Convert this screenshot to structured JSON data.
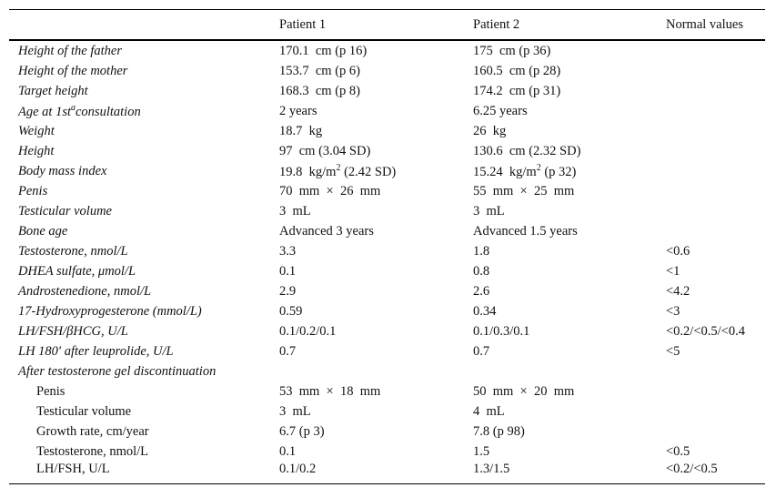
{
  "table": {
    "header": [
      "Patient 1",
      "Patient 2",
      "Normal values"
    ],
    "rows": [
      [
        "Height of the father",
        "170.1  cm (p 16)",
        "175  cm (p 36)",
        null
      ],
      [
        "Height of the mother",
        "153.7  cm (p 6)",
        "160.5  cm (p 28)",
        null
      ],
      [
        "Target height",
        "168.3  cm (p 8)",
        "174.2  cm (p 31)",
        null
      ],
      [
        {
          "text": "Age at 1st",
          "sup": "a",
          "tail": "consultation"
        },
        "2 years",
        "6.25 years",
        null
      ],
      [
        "Weight",
        "18.7  kg",
        "26  kg",
        null
      ],
      [
        "Height",
        "97  cm (3.04 SD)",
        "130.6  cm (2.32 SD)",
        null
      ],
      [
        "Body mass index",
        {
          "text": "19.8  kg/m",
          "sup": "2",
          "tail": " (2.42 SD)"
        },
        {
          "text": "15.24  kg/m",
          "sup": "2",
          "tail": " (p 32)"
        },
        null
      ],
      [
        "Penis",
        "70  mm  ×  26  mm",
        "55  mm  ×  25  mm",
        null
      ],
      [
        "Testicular volume",
        "3  mL",
        "3  mL",
        null
      ],
      [
        "Bone age",
        "Advanced 3 years",
        "Advanced 1.5 years",
        null
      ],
      [
        "Testosterone, nmol/L",
        "3.3",
        "1.8",
        "<0.6"
      ],
      [
        "DHEA sulfate, μmol/L",
        "0.1",
        "0.8",
        "<1"
      ],
      [
        "Androstenedione, nmol/L",
        "2.9",
        "2.6",
        "<4.2"
      ],
      [
        "17-Hydroxyprogesterone (mmol/L)",
        "0.59",
        "0.34",
        "<3"
      ],
      [
        "LH/FSH/βHCG, U/L",
        "0.1/0.2/0.1",
        "0.1/0.3/0.1",
        "<0.2/<0.5/<0.4"
      ],
      [
        "LH 180′ after leuprolide, U/L",
        "0.7",
        "0.7",
        "<5"
      ]
    ],
    "section": {
      "title": "After testosterone gel discontinuation",
      "rows": [
        [
          "Penis",
          "53  mm  ×  18  mm",
          "50  mm  ×  20  mm",
          null
        ],
        [
          "Testicular volume",
          "3  mL",
          "4  mL",
          null
        ],
        [
          "Growth rate, cm/year",
          "6.7 (p 3)",
          "7.8 (p 98)",
          null
        ],
        [
          "Testosterone, nmol/L",
          "0.1",
          "1.5",
          "<0.5"
        ],
        [
          "LH/FSH, U/L",
          "0.1/0.2",
          "1.3/1.5",
          "<0.2/<0.5"
        ]
      ]
    }
  }
}
